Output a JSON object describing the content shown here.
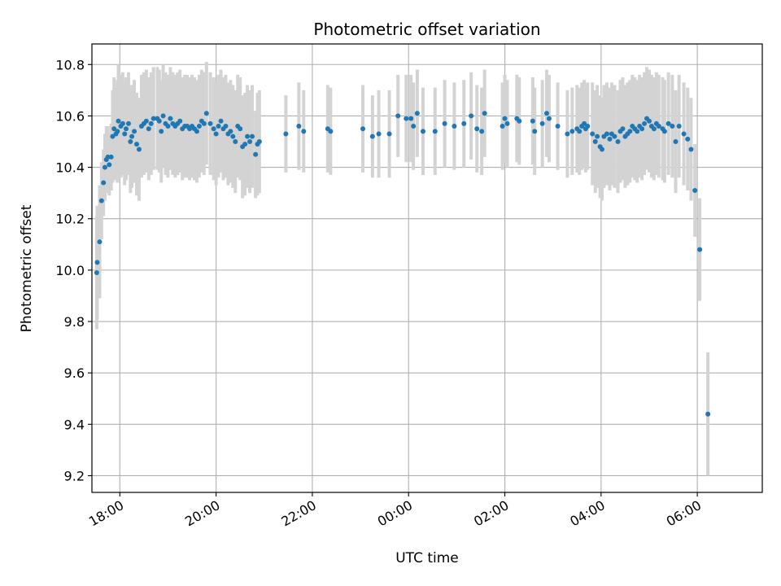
{
  "chart_data": {
    "type": "scatter",
    "title": "Photometric offset variation",
    "xlabel": "UTC time",
    "ylabel": "Photometric offset",
    "x_unit": "hour",
    "xlim": [
      17.42,
      31.35
    ],
    "ylim": [
      9.135,
      10.88
    ],
    "x_ticks": [
      {
        "x": 18,
        "label": "18:00"
      },
      {
        "x": 20,
        "label": "20:00"
      },
      {
        "x": 22,
        "label": "22:00"
      },
      {
        "x": 24,
        "label": "00:00"
      },
      {
        "x": 26,
        "label": "02:00"
      },
      {
        "x": 28,
        "label": "04:00"
      },
      {
        "x": 30,
        "label": "06:00"
      }
    ],
    "y_ticks": [
      {
        "y": 9.2,
        "label": "9.2"
      },
      {
        "y": 9.4,
        "label": "9.4"
      },
      {
        "y": 9.6,
        "label": "9.6"
      },
      {
        "y": 9.8,
        "label": "9.8"
      },
      {
        "y": 10.0,
        "label": "10.0"
      },
      {
        "y": 10.2,
        "label": "10.2"
      },
      {
        "y": 10.4,
        "label": "10.4"
      },
      {
        "y": 10.6,
        "label": "10.6"
      },
      {
        "y": 10.8,
        "label": "10.8"
      }
    ],
    "grid": true,
    "marker_color": "#1f77b4",
    "errorbar_color": "#d3d3d3",
    "series": [
      {
        "points": [
          [
            17.52,
            9.99,
            0.22
          ],
          [
            17.53,
            10.03,
            0.22
          ],
          [
            17.58,
            10.11,
            0.22
          ],
          [
            17.62,
            10.27,
            0.15
          ],
          [
            17.66,
            10.34,
            0.13
          ],
          [
            17.69,
            10.4,
            0.13
          ],
          [
            17.72,
            10.43,
            0.13
          ],
          [
            17.75,
            10.44,
            0.12
          ],
          [
            17.78,
            10.41,
            0.12
          ],
          [
            17.82,
            10.44,
            0.13
          ],
          [
            17.85,
            10.52,
            0.18
          ],
          [
            17.88,
            10.55,
            0.2
          ],
          [
            17.92,
            10.53,
            0.18
          ],
          [
            17.95,
            10.54,
            0.2
          ],
          [
            17.97,
            10.58,
            0.22
          ],
          [
            18.02,
            10.56,
            0.2
          ],
          [
            18.06,
            10.57,
            0.2
          ],
          [
            18.1,
            10.53,
            0.2
          ],
          [
            18.13,
            10.55,
            0.2
          ],
          [
            18.18,
            10.57,
            0.2
          ],
          [
            18.22,
            10.5,
            0.2
          ],
          [
            18.25,
            10.52,
            0.2
          ],
          [
            18.3,
            10.54,
            0.2
          ],
          [
            18.35,
            10.49,
            0.2
          ],
          [
            18.4,
            10.47,
            0.2
          ],
          [
            18.45,
            10.56,
            0.2
          ],
          [
            18.5,
            10.57,
            0.2
          ],
          [
            18.55,
            10.58,
            0.2
          ],
          [
            18.6,
            10.55,
            0.2
          ],
          [
            18.65,
            10.57,
            0.2
          ],
          [
            18.7,
            10.59,
            0.2
          ],
          [
            18.78,
            10.59,
            0.2
          ],
          [
            18.82,
            10.58,
            0.2
          ],
          [
            18.86,
            10.54,
            0.2
          ],
          [
            18.9,
            10.6,
            0.2
          ],
          [
            18.95,
            10.57,
            0.2
          ],
          [
            19.0,
            10.56,
            0.2
          ],
          [
            19.05,
            10.59,
            0.2
          ],
          [
            19.1,
            10.57,
            0.2
          ],
          [
            19.15,
            10.56,
            0.2
          ],
          [
            19.2,
            10.57,
            0.2
          ],
          [
            19.25,
            10.58,
            0.2
          ],
          [
            19.3,
            10.55,
            0.2
          ],
          [
            19.35,
            10.56,
            0.2
          ],
          [
            19.4,
            10.56,
            0.2
          ],
          [
            19.45,
            10.55,
            0.2
          ],
          [
            19.5,
            10.56,
            0.2
          ],
          [
            19.55,
            10.55,
            0.2
          ],
          [
            19.6,
            10.54,
            0.2
          ],
          [
            19.65,
            10.56,
            0.2
          ],
          [
            19.7,
            10.58,
            0.2
          ],
          [
            19.75,
            10.57,
            0.2
          ],
          [
            19.8,
            10.61,
            0.2
          ],
          [
            19.88,
            10.57,
            0.2
          ],
          [
            19.95,
            10.55,
            0.2
          ],
          [
            20.0,
            10.53,
            0.2
          ],
          [
            20.05,
            10.56,
            0.2
          ],
          [
            20.1,
            10.58,
            0.2
          ],
          [
            20.15,
            10.55,
            0.2
          ],
          [
            20.2,
            10.56,
            0.2
          ],
          [
            20.25,
            10.53,
            0.2
          ],
          [
            20.3,
            10.54,
            0.2
          ],
          [
            20.35,
            10.52,
            0.2
          ],
          [
            20.4,
            10.5,
            0.2
          ],
          [
            20.45,
            10.56,
            0.2
          ],
          [
            20.5,
            10.55,
            0.2
          ],
          [
            20.55,
            10.48,
            0.2
          ],
          [
            20.6,
            10.49,
            0.2
          ],
          [
            20.65,
            10.52,
            0.2
          ],
          [
            20.7,
            10.5,
            0.2
          ],
          [
            20.75,
            10.52,
            0.2
          ],
          [
            20.82,
            10.45,
            0.17
          ],
          [
            20.86,
            10.49,
            0.2
          ],
          [
            20.9,
            10.5,
            0.2
          ],
          [
            21.45,
            10.53,
            0.15
          ],
          [
            21.72,
            10.56,
            0.17
          ],
          [
            21.82,
            10.54,
            0.16
          ],
          [
            22.32,
            10.55,
            0.17
          ],
          [
            22.38,
            10.54,
            0.17
          ],
          [
            23.05,
            10.55,
            0.17
          ],
          [
            23.25,
            10.52,
            0.16
          ],
          [
            23.38,
            10.53,
            0.17
          ],
          [
            23.6,
            10.53,
            0.17
          ],
          [
            23.78,
            10.6,
            0.16
          ],
          [
            23.95,
            10.59,
            0.17
          ],
          [
            24.05,
            10.59,
            0.17
          ],
          [
            24.1,
            10.56,
            0.17
          ],
          [
            24.18,
            10.61,
            0.17
          ],
          [
            24.3,
            10.54,
            0.17
          ],
          [
            24.55,
            10.54,
            0.17
          ],
          [
            24.75,
            10.57,
            0.17
          ],
          [
            24.95,
            10.56,
            0.17
          ],
          [
            25.15,
            10.57,
            0.17
          ],
          [
            25.3,
            10.6,
            0.17
          ],
          [
            25.42,
            10.55,
            0.17
          ],
          [
            25.52,
            10.54,
            0.17
          ],
          [
            25.58,
            10.61,
            0.17
          ],
          [
            25.95,
            10.56,
            0.17
          ],
          [
            26.0,
            10.59,
            0.17
          ],
          [
            26.05,
            10.57,
            0.17
          ],
          [
            26.25,
            10.59,
            0.17
          ],
          [
            26.3,
            10.58,
            0.17
          ],
          [
            26.58,
            10.58,
            0.17
          ],
          [
            26.62,
            10.54,
            0.17
          ],
          [
            26.78,
            10.57,
            0.17
          ],
          [
            26.87,
            10.61,
            0.17
          ],
          [
            26.92,
            10.59,
            0.17
          ],
          [
            27.1,
            10.56,
            0.17
          ],
          [
            27.3,
            10.53,
            0.17
          ],
          [
            27.4,
            10.54,
            0.17
          ],
          [
            27.5,
            10.55,
            0.17
          ],
          [
            27.55,
            10.54,
            0.17
          ],
          [
            27.6,
            10.56,
            0.17
          ],
          [
            27.65,
            10.57,
            0.17
          ],
          [
            27.68,
            10.55,
            0.17
          ],
          [
            27.72,
            10.56,
            0.17
          ],
          [
            27.82,
            10.53,
            0.2
          ],
          [
            27.88,
            10.5,
            0.2
          ],
          [
            27.92,
            10.52,
            0.2
          ],
          [
            27.98,
            10.48,
            0.2
          ],
          [
            28.02,
            10.47,
            0.2
          ],
          [
            28.06,
            10.52,
            0.2
          ],
          [
            28.12,
            10.53,
            0.2
          ],
          [
            28.18,
            10.51,
            0.2
          ],
          [
            28.22,
            10.53,
            0.2
          ],
          [
            28.28,
            10.52,
            0.2
          ],
          [
            28.35,
            10.5,
            0.2
          ],
          [
            28.4,
            10.54,
            0.2
          ],
          [
            28.45,
            10.55,
            0.2
          ],
          [
            28.5,
            10.52,
            0.2
          ],
          [
            28.55,
            10.53,
            0.2
          ],
          [
            28.6,
            10.54,
            0.2
          ],
          [
            28.65,
            10.56,
            0.2
          ],
          [
            28.7,
            10.55,
            0.2
          ],
          [
            28.75,
            10.54,
            0.2
          ],
          [
            28.8,
            10.56,
            0.2
          ],
          [
            28.85,
            10.55,
            0.2
          ],
          [
            28.9,
            10.57,
            0.2
          ],
          [
            28.95,
            10.59,
            0.2
          ],
          [
            29.0,
            10.58,
            0.2
          ],
          [
            29.05,
            10.56,
            0.2
          ],
          [
            29.1,
            10.55,
            0.2
          ],
          [
            29.15,
            10.57,
            0.2
          ],
          [
            29.2,
            10.56,
            0.2
          ],
          [
            29.28,
            10.55,
            0.2
          ],
          [
            29.32,
            10.54,
            0.2
          ],
          [
            29.4,
            10.57,
            0.2
          ],
          [
            29.48,
            10.56,
            0.2
          ],
          [
            29.55,
            10.5,
            0.2
          ],
          [
            29.62,
            10.56,
            0.2
          ],
          [
            29.72,
            10.53,
            0.2
          ],
          [
            29.8,
            10.51,
            0.2
          ],
          [
            29.87,
            10.47,
            0.2
          ],
          [
            29.95,
            10.31,
            0.18
          ],
          [
            30.05,
            10.08,
            0.2
          ],
          [
            30.22,
            9.44,
            0.24
          ]
        ]
      }
    ]
  }
}
